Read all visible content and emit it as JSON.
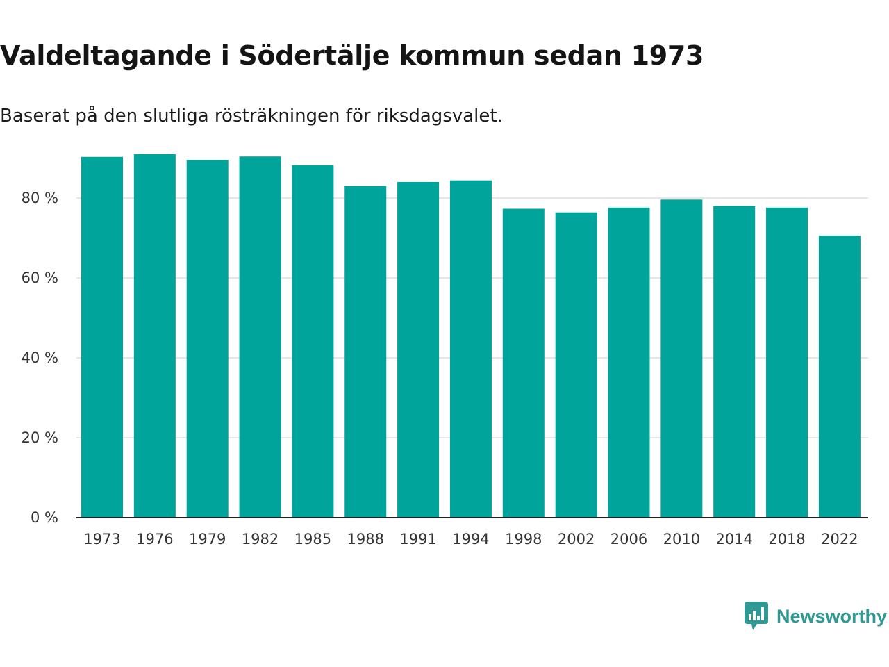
{
  "title": "Valdeltagande i Södertälje kommun sedan 1973",
  "subtitle": "Baserat på den slutliga rösträkningen för riksdagsvalet.",
  "brand": {
    "name": "Newsworthy",
    "icon": "newsworthy-logo-icon",
    "color": "#2f9a93"
  },
  "colors": {
    "bar": "#00a49a",
    "grid": "#dddddd",
    "axis": "#222222"
  },
  "chart_data": {
    "type": "bar",
    "title": "Valdeltagande i Södertälje kommun sedan 1973",
    "subtitle": "Baserat på den slutliga rösträkningen för riksdagsvalet.",
    "xlabel": "",
    "ylabel": "",
    "categories": [
      "1973",
      "1976",
      "1979",
      "1982",
      "1985",
      "1988",
      "1991",
      "1994",
      "1998",
      "2002",
      "2006",
      "2010",
      "2014",
      "2018",
      "2022"
    ],
    "values": [
      90.3,
      91.0,
      89.5,
      90.4,
      88.2,
      83.0,
      84.0,
      84.4,
      77.3,
      76.4,
      77.6,
      79.6,
      78.0,
      77.6,
      70.6
    ],
    "ylim": [
      0,
      90
    ],
    "yticks": [
      0,
      20,
      40,
      60,
      80
    ],
    "ytick_labels": [
      "0 %",
      "20 %",
      "40 %",
      "60 %",
      "80 %"
    ],
    "grid": true,
    "legend": "none"
  }
}
